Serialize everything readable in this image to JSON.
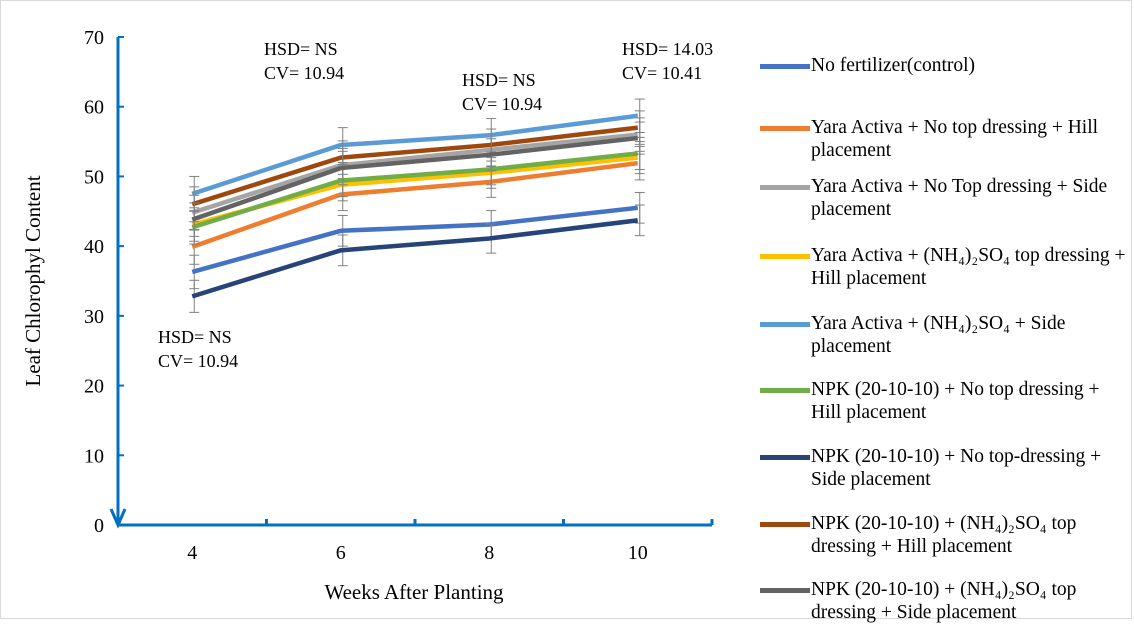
{
  "chart_data": {
    "type": "line",
    "title": "",
    "xlabel": "Weeks After Planting",
    "ylabel": "Leaf Chlorophyl Content",
    "x": [
      4,
      6,
      8,
      10
    ],
    "ylim": [
      0,
      70
    ],
    "yticks": [
      0,
      10,
      20,
      30,
      40,
      50,
      60,
      70
    ],
    "grid": false,
    "legend_position": "right",
    "error_bars": true,
    "series": [
      {
        "name": "No fertilizer(control)",
        "color": "#4472C4",
        "values": [
          36.3,
          42.2,
          43.1,
          45.5
        ],
        "errors": [
          2.4,
          2.2,
          2.0,
          2.2
        ]
      },
      {
        "name": "Yara Activa + No top dressing + Hill placement",
        "color": "#ED7D31",
        "values": [
          39.9,
          47.4,
          49.2,
          51.9
        ],
        "errors": [
          2.5,
          2.3,
          2.2,
          2.4
        ]
      },
      {
        "name": "Yara Activa + No Top dressing + Side placement",
        "color": "#A5A5A5",
        "values": [
          44.8,
          51.6,
          53.8,
          56.0
        ],
        "errors": [
          2.5,
          2.4,
          2.3,
          2.4
        ]
      },
      {
        "name": "Yara Activa + (NH₄)₂SO₄ top dressing + Hill placement",
        "color": "#FFC000",
        "values": [
          43.1,
          48.8,
          50.5,
          52.7
        ],
        "errors": [
          2.4,
          2.3,
          2.2,
          2.3
        ]
      },
      {
        "name": "Yara Activa + (NH₄)₂SO₄ + Side placement",
        "color": "#5B9BD5",
        "values": [
          47.5,
          54.5,
          55.9,
          58.7
        ],
        "errors": [
          2.5,
          2.5,
          2.4,
          2.4
        ]
      },
      {
        "name": "NPK (20-10-10) + No top dressing + Hill placement",
        "color": "#70AD47",
        "values": [
          42.7,
          49.4,
          51.0,
          53.3
        ],
        "errors": [
          2.4,
          2.3,
          2.2,
          2.3
        ]
      },
      {
        "name": "NPK (20-10-10) + No top-dressing + Side placement",
        "color": "#264478",
        "values": [
          32.8,
          39.4,
          41.1,
          43.7
        ],
        "errors": [
          2.3,
          2.2,
          2.1,
          2.2
        ]
      },
      {
        "name": "NPK (20-10-10) + (NH₄)₂SO₄ top dressing + Hill placement",
        "color": "#9E480E",
        "values": [
          46.0,
          52.7,
          54.5,
          57.0
        ],
        "errors": [
          2.5,
          2.4,
          2.3,
          2.4
        ]
      },
      {
        "name": "NPK (20-10-10) + (NH₄)₂SO₄ top dressing + Side placement",
        "color": "#636363",
        "values": [
          43.8,
          51.2,
          53.1,
          55.5
        ],
        "errors": [
          2.4,
          2.4,
          2.3,
          2.3
        ]
      }
    ],
    "annotations": [
      {
        "x": 4,
        "lines": [
          "HSD= NS",
          "CV= 10.94"
        ]
      },
      {
        "x": 6,
        "lines": [
          "HSD= NS",
          "CV= 10.94"
        ]
      },
      {
        "x": 8,
        "lines": [
          "HSD= NS",
          "CV= 10.94"
        ]
      },
      {
        "x": 10,
        "lines": [
          "HSD= 14.03",
          "CV= 10.41"
        ]
      }
    ]
  },
  "colors": {
    "axis": "#0070C0",
    "errorbar": "#808080"
  }
}
